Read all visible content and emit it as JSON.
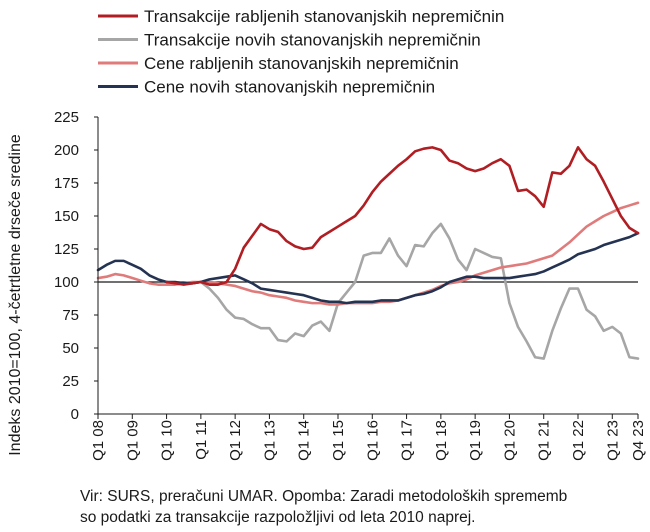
{
  "chart_data": {
    "type": "line",
    "title": "",
    "ylabel": "Indeks 2010=100, 4-četrtletne drseče sredine",
    "xlabel": "",
    "ylim": [
      0,
      225
    ],
    "yticks": [
      0,
      25,
      50,
      75,
      100,
      125,
      150,
      175,
      200,
      225
    ],
    "reference_line": 100,
    "legend_position": "top",
    "x_tick_labels": [
      "Q1 08",
      "Q1 09",
      "Q1 10",
      "Q1 11",
      "Q1 12",
      "Q1 13",
      "Q1 14",
      "Q1 15",
      "Q1 16",
      "Q1 17",
      "Q1 18",
      "Q1 19",
      "Q1 20",
      "Q1 21",
      "Q1 22",
      "Q1 23",
      "Q4 23"
    ],
    "x": [
      "Q1 08",
      "Q2 08",
      "Q3 08",
      "Q4 08",
      "Q1 09",
      "Q2 09",
      "Q3 09",
      "Q4 09",
      "Q1 10",
      "Q2 10",
      "Q3 10",
      "Q4 10",
      "Q1 11",
      "Q2 11",
      "Q3 11",
      "Q4 11",
      "Q1 12",
      "Q2 12",
      "Q3 12",
      "Q4 12",
      "Q1 13",
      "Q2 13",
      "Q3 13",
      "Q4 13",
      "Q1 14",
      "Q2 14",
      "Q3 14",
      "Q4 14",
      "Q1 15",
      "Q2 15",
      "Q3 15",
      "Q4 15",
      "Q1 16",
      "Q2 16",
      "Q3 16",
      "Q4 16",
      "Q1 17",
      "Q2 17",
      "Q3 17",
      "Q4 17",
      "Q1 18",
      "Q2 18",
      "Q3 18",
      "Q4 18",
      "Q1 19",
      "Q2 19",
      "Q3 19",
      "Q4 19",
      "Q1 20",
      "Q2 20",
      "Q3 20",
      "Q4 20",
      "Q1 21",
      "Q2 21",
      "Q3 21",
      "Q4 21",
      "Q1 22",
      "Q2 22",
      "Q3 22",
      "Q4 22",
      "Q1 23",
      "Q2 23",
      "Q3 23",
      "Q4 23"
    ],
    "series": [
      {
        "name": "Transakcije rabljenih stanovanjskih nepremičnin",
        "color": "#b01e23",
        "values": [
          null,
          null,
          null,
          null,
          null,
          null,
          null,
          null,
          100,
          99,
          98,
          99,
          100,
          98,
          98,
          100,
          110,
          126,
          135,
          144,
          140,
          138,
          131,
          127,
          125,
          126,
          134,
          138,
          142,
          146,
          150,
          158,
          168,
          176,
          182,
          188,
          193,
          199,
          201,
          202,
          200,
          192,
          190,
          186,
          184,
          186,
          190,
          193,
          188,
          169,
          170,
          165,
          157,
          183,
          182,
          188,
          202,
          193,
          188,
          176,
          163,
          150,
          141,
          137
        ]
      },
      {
        "name": "Transakcije novih stanovanjskih nepremičnin",
        "color": "#a6a6a6",
        "values": [
          null,
          null,
          null,
          null,
          null,
          null,
          null,
          null,
          100,
          99,
          99,
          99,
          100,
          95,
          88,
          79,
          73,
          72,
          68,
          65,
          65,
          56,
          55,
          61,
          59,
          67,
          70,
          63,
          84,
          92,
          100,
          120,
          122,
          122,
          133,
          120,
          112,
          128,
          127,
          137,
          144,
          133,
          117,
          109,
          125,
          122,
          119,
          118,
          84,
          66,
          55,
          43,
          42,
          63,
          80,
          95,
          95,
          79,
          74,
          63,
          66,
          61,
          43,
          42
        ]
      },
      {
        "name": "Cene rabljenih stanovanjskih nepremičnin",
        "color": "#e07b7b",
        "values": [
          103,
          104,
          106,
          105,
          103,
          101,
          99,
          98,
          98,
          98,
          99,
          100,
          100,
          100,
          99,
          98,
          97,
          95,
          93,
          92,
          90,
          89,
          88,
          86,
          85,
          84,
          84,
          83,
          83,
          84,
          84,
          84,
          84,
          85,
          85,
          86,
          88,
          90,
          92,
          94,
          97,
          99,
          100,
          102,
          105,
          107,
          109,
          111,
          112,
          113,
          114,
          116,
          118,
          120,
          125,
          130,
          136,
          142,
          146,
          150,
          153,
          156,
          158,
          160
        ]
      },
      {
        "name": "Cene novih stanovanjskih nepremičnin",
        "color": "#253352",
        "values": [
          109,
          113,
          116,
          116,
          113,
          110,
          105,
          102,
          100,
          100,
          99,
          99,
          100,
          102,
          103,
          104,
          105,
          102,
          99,
          95,
          94,
          93,
          92,
          91,
          90,
          88,
          86,
          85,
          85,
          84,
          85,
          85,
          85,
          86,
          86,
          86,
          88,
          90,
          91,
          93,
          96,
          100,
          102,
          104,
          104,
          103,
          103,
          103,
          103,
          104,
          105,
          106,
          108,
          111,
          114,
          117,
          121,
          123,
          125,
          128,
          130,
          132,
          134,
          137
        ]
      }
    ]
  },
  "source_note": {
    "line1": "Vir: SURS, preračuni UMAR. Opomba: Zaradi metodoloških sprememb",
    "line2": "so podatki za transakcije razpoložljivi od leta 2010 naprej."
  }
}
